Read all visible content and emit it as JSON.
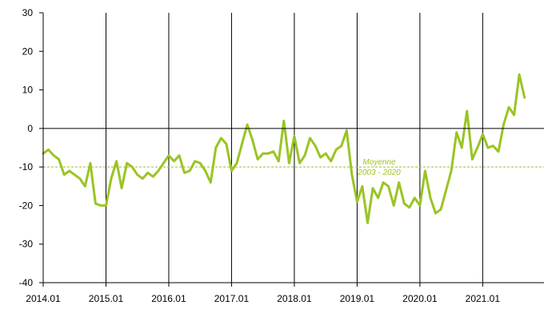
{
  "chart_data": {
    "type": "line",
    "title": "",
    "xlabel": "",
    "ylabel": "",
    "ylim": [
      -40,
      30
    ],
    "yticks": [
      -40,
      -30,
      -20,
      -10,
      0,
      10,
      20,
      30
    ],
    "xtick_labels": [
      "2014.01",
      "2015.01",
      "2016.01",
      "2017.01",
      "2018.01",
      "2019.01",
      "2020.01",
      "2021.01"
    ],
    "grid": "vertical lines at each January",
    "colors": {
      "series": "#9ac424",
      "average_line": "#9ac424",
      "axes": "#000000"
    },
    "series": [
      {
        "start": "2014.01",
        "frequency": "monthly",
        "values": [
          -6.5,
          -5.5,
          -7,
          -8,
          -12,
          -11,
          -12,
          -13,
          -15,
          -9,
          -19.5,
          -20,
          -20,
          -13,
          -8.5,
          -15.5,
          -9,
          -10,
          -12,
          -13,
          -11.5,
          -12.5,
          -11,
          -9,
          -7,
          -8.5,
          -7,
          -11.5,
          -11,
          -8.5,
          -9,
          -11,
          -14,
          -5,
          -2.5,
          -4,
          -11,
          -9,
          -4,
          1,
          -3,
          -8,
          -6.5,
          -6.5,
          -6,
          -8.5,
          2,
          -9,
          -2,
          -9,
          -7,
          -2.5,
          -4.5,
          -7.5,
          -6.5,
          -8.5,
          -5.5,
          -4.5,
          -0.5,
          -12,
          -19,
          -15,
          -24.5,
          -15.5,
          -18,
          -14,
          -15,
          -20,
          -14,
          -19.5,
          -20.5,
          -18,
          -20,
          -11,
          -18,
          -22,
          -21,
          -16,
          -11,
          -1,
          -5,
          4.5,
          -8,
          -5,
          -1.5,
          -5,
          -4.5,
          -6,
          1,
          5.5,
          3.5,
          14,
          8
        ]
      }
    ],
    "average": {
      "value": -10,
      "label_line1": "Moyenne",
      "label_line2": "2003 - 2020"
    }
  }
}
